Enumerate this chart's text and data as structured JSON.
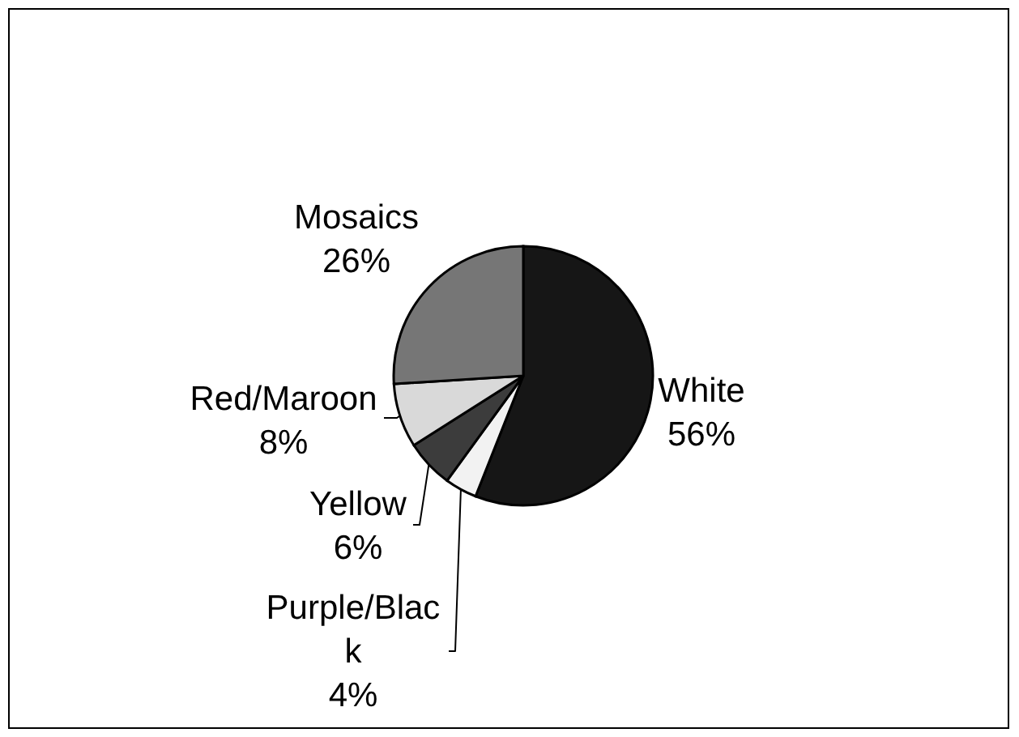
{
  "chart_data": {
    "type": "pie",
    "categories": [
      "White",
      "Purple/Black",
      "Yellow",
      "Red/Maroon",
      "Mosaics"
    ],
    "values": [
      56,
      4,
      6,
      8,
      26
    ],
    "colors": [
      "#161616",
      "#f2f2f2",
      "#3c3c3c",
      "#d9d9d9",
      "#767676"
    ],
    "value_labels": [
      "56%",
      "4%",
      "6%",
      "8%",
      "26%"
    ]
  }
}
